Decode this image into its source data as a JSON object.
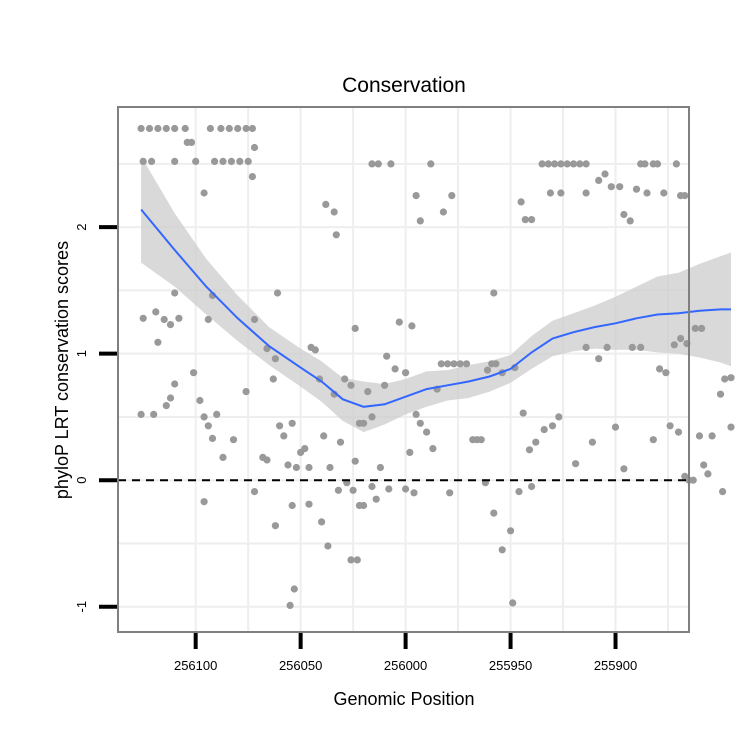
{
  "chart_data": {
    "type": "scatter",
    "title": "Conservation",
    "xlabel": "Genomic Position",
    "ylabel": "phyloP LRT conservation scores",
    "xlim": [
      256137,
      255865
    ],
    "ylim": [
      -1.2,
      2.95
    ],
    "x_reversed": true,
    "x_ticks": [
      256100,
      256050,
      256000,
      255950,
      255900
    ],
    "x_tick_labels": [
      "256100",
      "256050",
      "256000",
      "255950",
      "255900"
    ],
    "y_ticks": [
      -1,
      0,
      1,
      2
    ],
    "y_tick_labels": [
      "-1",
      "0",
      "1",
      "2"
    ],
    "grid": true,
    "reference_line": {
      "y": 0,
      "style": "dashed",
      "color": "#000000"
    },
    "colors": {
      "points": "#999999",
      "smooth_line": "#3366ff",
      "confidence_band": "#cccccc",
      "panel_border": "#808080",
      "grid": "#eeeeee"
    },
    "points": [
      [
        256126,
        2.78
      ],
      [
        256122,
        2.78
      ],
      [
        256118,
        2.78
      ],
      [
        256114,
        2.78
      ],
      [
        256110,
        2.78
      ],
      [
        256105,
        2.78
      ],
      [
        256093,
        2.78
      ],
      [
        256088,
        2.78
      ],
      [
        256084,
        2.78
      ],
      [
        256080,
        2.78
      ],
      [
        256076,
        2.78
      ],
      [
        256073,
        2.78
      ],
      [
        256125,
        2.52
      ],
      [
        256121,
        2.52
      ],
      [
        256110,
        2.52
      ],
      [
        256100,
        2.52
      ],
      [
        256091,
        2.52
      ],
      [
        256087,
        2.52
      ],
      [
        256083,
        2.52
      ],
      [
        256079,
        2.52
      ],
      [
        256075,
        2.52
      ],
      [
        256104,
        2.67
      ],
      [
        256102,
        2.67
      ],
      [
        256072,
        2.63
      ],
      [
        256073,
        2.4
      ],
      [
        256096,
        2.27
      ],
      [
        256038,
        2.18
      ],
      [
        256034,
        2.12
      ],
      [
        256033,
        1.94
      ],
      [
        256016,
        2.5
      ],
      [
        256013,
        2.5
      ],
      [
        256007,
        2.5
      ],
      [
        255995,
        2.25
      ],
      [
        255993,
        2.05
      ],
      [
        255988,
        2.5
      ],
      [
        255982,
        2.12
      ],
      [
        255978,
        2.25
      ],
      [
        255945,
        2.2
      ],
      [
        255943,
        2.06
      ],
      [
        255940,
        2.06
      ],
      [
        255935,
        2.5
      ],
      [
        255932,
        2.5
      ],
      [
        255929,
        2.5
      ],
      [
        255926,
        2.5
      ],
      [
        255923,
        2.5
      ],
      [
        255920,
        2.5
      ],
      [
        255917,
        2.5
      ],
      [
        255914,
        2.5
      ],
      [
        255931,
        2.27
      ],
      [
        255926,
        2.27
      ],
      [
        255914,
        2.27
      ],
      [
        255908,
        2.37
      ],
      [
        255905,
        2.42
      ],
      [
        255902,
        2.32
      ],
      [
        255898,
        2.32
      ],
      [
        255896,
        2.1
      ],
      [
        255888,
        2.5
      ],
      [
        255886,
        2.5
      ],
      [
        255882,
        2.5
      ],
      [
        255880,
        2.5
      ],
      [
        255871,
        2.5
      ],
      [
        255890,
        2.3
      ],
      [
        255885,
        2.27
      ],
      [
        255877,
        2.27
      ],
      [
        255869,
        2.25
      ],
      [
        255867,
        2.25
      ],
      [
        255893,
        2.05
      ],
      [
        256110,
        1.48
      ],
      [
        256092,
        1.46
      ],
      [
        256061,
        1.48
      ],
      [
        256125,
        1.28
      ],
      [
        256119,
        1.33
      ],
      [
        256115,
        1.27
      ],
      [
        256112,
        1.23
      ],
      [
        256108,
        1.28
      ],
      [
        256094,
        1.27
      ],
      [
        256072,
        1.27
      ],
      [
        256066,
        1.04
      ],
      [
        256062,
        0.96
      ],
      [
        256045,
        1.05
      ],
      [
        256043,
        1.03
      ],
      [
        256024,
        1.2
      ],
      [
        256009,
        0.98
      ],
      [
        256003,
        1.25
      ],
      [
        255997,
        1.22
      ],
      [
        256126,
        0.52
      ],
      [
        256120,
        0.52
      ],
      [
        256118,
        1.09
      ],
      [
        256114,
        0.59
      ],
      [
        256112,
        0.65
      ],
      [
        256110,
        0.76
      ],
      [
        256101,
        0.85
      ],
      [
        256098,
        0.63
      ],
      [
        256096,
        0.5
      ],
      [
        256094,
        0.43
      ],
      [
        256092,
        0.33
      ],
      [
        256090,
        0.52
      ],
      [
        256087,
        0.18
      ],
      [
        256082,
        0.32
      ],
      [
        256076,
        0.7
      ],
      [
        256068,
        0.18
      ],
      [
        256066,
        0.16
      ],
      [
        256063,
        0.8
      ],
      [
        256060,
        0.43
      ],
      [
        256058,
        0.35
      ],
      [
        256056,
        0.12
      ],
      [
        256054,
        0.45
      ],
      [
        256052,
        0.1
      ],
      [
        256050,
        0.22
      ],
      [
        256048,
        0.25
      ],
      [
        256046,
        0.1
      ],
      [
        256041,
        0.8
      ],
      [
        256039,
        0.35
      ],
      [
        256036,
        0.1
      ],
      [
        256034,
        0.68
      ],
      [
        256031,
        0.3
      ],
      [
        256029,
        0.8
      ],
      [
        256026,
        0.75
      ],
      [
        256024,
        0.15
      ],
      [
        256022,
        0.45
      ],
      [
        256020,
        0.45
      ],
      [
        256018,
        0.7
      ],
      [
        256016,
        0.5
      ],
      [
        256012,
        0.1
      ],
      [
        256010,
        0.75
      ],
      [
        256005,
        0.88
      ],
      [
        256000,
        0.85
      ],
      [
        255998,
        0.22
      ],
      [
        255995,
        0.52
      ],
      [
        255993,
        0.45
      ],
      [
        255990,
        0.38
      ],
      [
        255987,
        0.25
      ],
      [
        255985,
        0.72
      ],
      [
        255983,
        0.92
      ],
      [
        255980,
        0.92
      ],
      [
        255977,
        0.92
      ],
      [
        255974,
        0.92
      ],
      [
        255971,
        0.92
      ],
      [
        255968,
        0.32
      ],
      [
        255966,
        0.32
      ],
      [
        255964,
        0.32
      ],
      [
        255961,
        0.87
      ],
      [
        255959,
        0.92
      ],
      [
        255957,
        0.92
      ],
      [
        255954,
        0.85
      ],
      [
        255948,
        0.89
      ],
      [
        255944,
        0.53
      ],
      [
        255941,
        0.24
      ],
      [
        255938,
        0.3
      ],
      [
        255934,
        0.4
      ],
      [
        255930,
        0.43
      ],
      [
        255927,
        0.5
      ],
      [
        255919,
        0.13
      ],
      [
        255914,
        1.05
      ],
      [
        255911,
        0.3
      ],
      [
        255908,
        0.96
      ],
      [
        255904,
        1.05
      ],
      [
        255900,
        0.42
      ],
      [
        255896,
        0.09
      ],
      [
        255892,
        1.05
      ],
      [
        255888,
        1.05
      ],
      [
        255882,
        0.32
      ],
      [
        255879,
        0.88
      ],
      [
        255876,
        0.85
      ],
      [
        255872,
        1.07
      ],
      [
        255869,
        1.12
      ],
      [
        255866,
        1.08
      ],
      [
        255862,
        1.2
      ],
      [
        255859,
        1.2
      ],
      [
        255958,
        1.48
      ],
      [
        256096,
        -0.17
      ],
      [
        256072,
        -0.09
      ],
      [
        256062,
        -0.36
      ],
      [
        256054,
        -0.2
      ],
      [
        256046,
        -0.19
      ],
      [
        256040,
        -0.33
      ],
      [
        256032,
        -0.08
      ],
      [
        256028,
        -0.02
      ],
      [
        256025,
        -0.08
      ],
      [
        256022,
        -0.2
      ],
      [
        256020,
        -0.2
      ],
      [
        256016,
        -0.05
      ],
      [
        256014,
        -0.15
      ],
      [
        256008,
        -0.07
      ],
      [
        256000,
        -0.07
      ],
      [
        255996,
        -0.1
      ],
      [
        255979,
        -0.1
      ],
      [
        255962,
        -0.02
      ],
      [
        255958,
        -0.26
      ],
      [
        255954,
        -0.55
      ],
      [
        255950,
        -0.4
      ],
      [
        255946,
        -0.09
      ],
      [
        255940,
        -0.05
      ],
      [
        256037,
        -0.52
      ],
      [
        256026,
        -0.63
      ],
      [
        256023,
        -0.63
      ],
      [
        256055,
        -0.99
      ],
      [
        256053,
        -0.86
      ],
      [
        255949,
        -0.97
      ],
      [
        255874,
        0.43
      ],
      [
        255870,
        0.38
      ],
      [
        255867,
        0.03
      ],
      [
        255865,
        0.0
      ],
      [
        255863,
        0.0
      ],
      [
        255860,
        0.35
      ],
      [
        255858,
        0.12
      ],
      [
        255856,
        0.05
      ],
      [
        255854,
        0.35
      ],
      [
        255850,
        0.68
      ],
      [
        255848,
        0.8
      ],
      [
        255845,
        0.81
      ],
      [
        255849,
        -0.09
      ],
      [
        255845,
        0.42
      ]
    ],
    "smooth": {
      "x": [
        256126,
        256110,
        256095,
        256080,
        256065,
        256050,
        256040,
        256030,
        256020,
        256010,
        256000,
        255990,
        255980,
        255970,
        255960,
        255950,
        255940,
        255930,
        255920,
        255910,
        255900,
        255890,
        255880,
        255870,
        255860,
        255850,
        255845
      ],
      "y": [
        2.14,
        1.82,
        1.53,
        1.28,
        1.06,
        0.89,
        0.78,
        0.64,
        0.58,
        0.6,
        0.66,
        0.72,
        0.75,
        0.78,
        0.82,
        0.88,
        1.01,
        1.12,
        1.17,
        1.21,
        1.24,
        1.28,
        1.31,
        1.32,
        1.34,
        1.35,
        1.35
      ],
      "lower": [
        1.72,
        1.53,
        1.31,
        1.1,
        0.91,
        0.74,
        0.62,
        0.47,
        0.38,
        0.44,
        0.52,
        0.58,
        0.63,
        0.65,
        0.7,
        0.77,
        0.88,
        0.98,
        1.02,
        1.04,
        1.03,
        1.03,
        1.01,
        1.0,
        0.97,
        0.93,
        0.9
      ],
      "upper": [
        2.56,
        2.11,
        1.75,
        1.46,
        1.21,
        1.04,
        0.94,
        0.81,
        0.78,
        0.76,
        0.8,
        0.86,
        0.87,
        0.91,
        0.94,
        0.99,
        1.14,
        1.26,
        1.32,
        1.38,
        1.45,
        1.53,
        1.61,
        1.64,
        1.71,
        1.77,
        1.8
      ]
    }
  }
}
